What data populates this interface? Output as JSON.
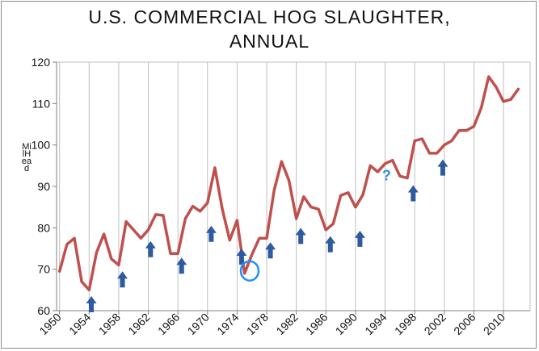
{
  "chart_data": {
    "type": "line",
    "title_line1": "U.S. COMMERCIAL HOG SLAUGHTER,",
    "title_line2": "ANNUAL",
    "ylabel": "MilHead",
    "xlabel": "",
    "ylim": [
      60,
      120
    ],
    "yticks": [
      "60",
      "70",
      "80",
      "90",
      "100",
      "110",
      "120"
    ],
    "xticks": [
      "1950",
      "1954",
      "1958",
      "1962",
      "1966",
      "1970",
      "1974",
      "1978",
      "1982",
      "1986",
      "1990",
      "1994",
      "1998",
      "2002",
      "2006",
      "2010"
    ],
    "grid": "vertical",
    "line_color": "#c0504d",
    "arrow_color": "#2e5aa0",
    "circle_color": "#1e90ff",
    "series": [
      {
        "x": [
          1950,
          1951,
          1952,
          1953,
          1954,
          1955,
          1956,
          1957,
          1958,
          1959,
          1960,
          1961,
          1962,
          1963,
          1964,
          1965,
          1966,
          1967,
          1968,
          1969,
          1970,
          1971,
          1972,
          1973,
          1974,
          1975,
          1976,
          1977,
          1978,
          1979,
          1980,
          1981,
          1982,
          1983,
          1984,
          1985,
          1986,
          1987,
          1988,
          1989,
          1990,
          1991,
          1992,
          1993,
          1994,
          1995,
          1996,
          1997,
          1998,
          1999,
          2000,
          2001,
          2002,
          2003,
          2004,
          2005,
          2006,
          2007,
          2008,
          2009,
          2010,
          2011,
          2012
        ],
        "values": [
          69.5,
          76.0,
          77.5,
          67.0,
          65.0,
          74.0,
          78.5,
          72.5,
          71.0,
          81.5,
          79.5,
          77.5,
          79.5,
          83.2,
          83.0,
          73.8,
          73.8,
          82.2,
          85.2,
          84.0,
          86.0,
          94.5,
          84.5,
          77.0,
          81.8,
          69.0,
          73.5,
          77.5,
          77.5,
          89.0,
          96.0,
          91.5,
          82.2,
          87.5,
          85.0,
          84.5,
          79.5,
          81.0,
          87.8,
          88.5,
          85.0,
          88.0,
          95.0,
          93.5,
          95.5,
          96.3,
          92.5,
          92.0,
          101.0,
          101.5,
          98.0,
          98.0,
          100.0,
          101.0,
          103.5,
          103.5,
          104.5,
          109.0,
          116.5,
          114.0,
          110.5,
          111.0,
          113.5
        ]
      }
    ],
    "annotations": {
      "up_arrow_years": [
        1954.3,
        1958.5,
        1962.3,
        1966.5,
        1970.5,
        1974.6,
        1978.5,
        1982.6,
        1986.6,
        1990.6,
        1997.8,
        2001.8
      ],
      "up_arrow_tip_values": [
        63.5,
        69.5,
        76.8,
        72.8,
        80.5,
        75.0,
        76.5,
        80.0,
        78.0,
        79.3,
        90.3,
        96.5
      ],
      "question_mark": "?",
      "question_mark_year": 1994.2,
      "question_mark_value": 91.5,
      "circled_year": 1975.7,
      "circled_value": 69.6
    }
  }
}
